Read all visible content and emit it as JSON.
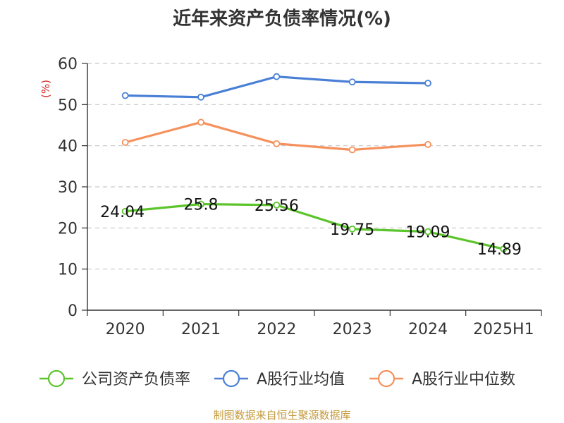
{
  "chart_data": {
    "type": "line",
    "title": "近年来资产负债率情况(%)",
    "ylabel": "(%)",
    "xlabel": "",
    "categories": [
      "2020",
      "2021",
      "2022",
      "2023",
      "2024",
      "2025H1"
    ],
    "ylim": [
      0,
      60
    ],
    "yticks": [
      0,
      10,
      20,
      30,
      40,
      50,
      60
    ],
    "grid": true,
    "legend_position": "bottom",
    "series": [
      {
        "name": "公司资产负债率",
        "color": "#5cc42c",
        "show_labels": true,
        "values": [
          24.04,
          25.8,
          25.56,
          19.75,
          19.09,
          14.89
        ],
        "labels": [
          "24.04",
          "25.8",
          "25.56",
          "19.75",
          "19.09",
          "14.89"
        ]
      },
      {
        "name": "A股行业均值",
        "color": "#4a7fd6",
        "show_labels": false,
        "values": [
          52.2,
          51.8,
          56.8,
          55.5,
          55.2,
          null
        ]
      },
      {
        "name": "A股行业中位数",
        "color": "#f5915c",
        "show_labels": false,
        "values": [
          40.8,
          45.7,
          40.5,
          39.0,
          40.3,
          null
        ]
      }
    ]
  },
  "source": "制图数据来自恒生聚源数据库"
}
